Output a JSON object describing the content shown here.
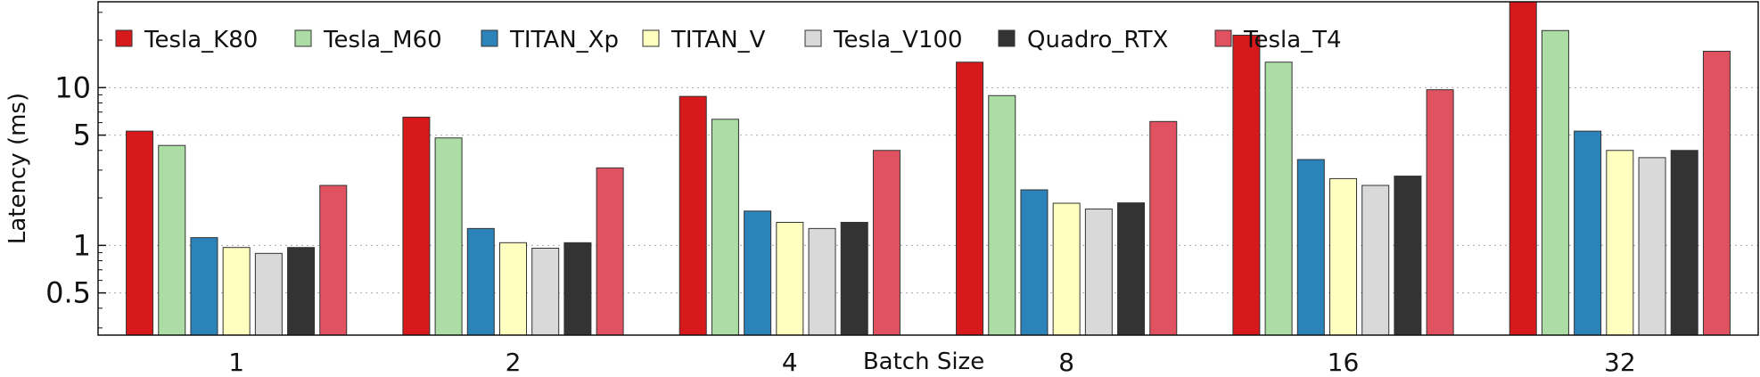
{
  "chart_data": {
    "type": "bar",
    "title": "",
    "xlabel": "Batch Size",
    "ylabel": "Latency (ms)",
    "y_scale": "log",
    "ylim": [
      0.27,
      35
    ],
    "y_ticks": [
      0.5,
      1,
      5,
      10
    ],
    "y_tick_labels": [
      "0.5",
      "1",
      "5",
      "10"
    ],
    "grid": true,
    "legend_position": "top-left",
    "categories": [
      "1",
      "2",
      "4",
      "8",
      "16",
      "32"
    ],
    "series": [
      {
        "name": "Tesla_K80",
        "color": "#d7191c",
        "values": [
          5.3,
          6.5,
          8.8,
          14.5,
          21.5,
          37.0
        ]
      },
      {
        "name": "Tesla_M60",
        "color": "#abdda4",
        "values": [
          4.3,
          4.8,
          6.3,
          8.9,
          14.5,
          23.0
        ]
      },
      {
        "name": "TITAN_Xp",
        "color": "#2b83ba",
        "values": [
          1.12,
          1.28,
          1.65,
          2.25,
          3.5,
          5.3
        ]
      },
      {
        "name": "TITAN_V",
        "color": "#ffffbf",
        "values": [
          0.97,
          1.04,
          1.4,
          1.85,
          2.65,
          4.0
        ]
      },
      {
        "name": "Tesla_V100",
        "color": "#d9d9d9",
        "values": [
          0.89,
          0.96,
          1.28,
          1.7,
          2.4,
          3.6
        ]
      },
      {
        "name": "Quadro_RTX",
        "color": "#333333",
        "values": [
          0.97,
          1.04,
          1.4,
          1.86,
          2.75,
          4.0
        ]
      },
      {
        "name": "Tesla_T4",
        "color": "#e05260",
        "values": [
          2.4,
          3.1,
          4.0,
          6.1,
          9.7,
          17.0
        ]
      }
    ]
  }
}
